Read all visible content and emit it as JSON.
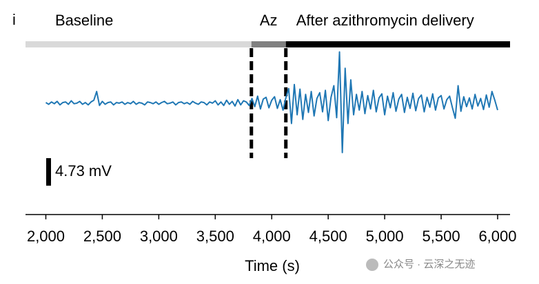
{
  "chart_data": {
    "type": "line",
    "panel_label": "i",
    "xlabel": "Time (s)",
    "watermark": "公众号 · 云深之无迹",
    "phases": [
      {
        "label": "Baseline",
        "start": 1820,
        "end": 3820,
        "color": "#d9d9d9"
      },
      {
        "label": "Az",
        "start": 3820,
        "end": 4125,
        "color": "#808080"
      },
      {
        "label": "After azithromycin delivery",
        "start": 4125,
        "end": 6110,
        "color": "#000000"
      }
    ],
    "markers": [
      3820,
      4125
    ],
    "scale_bar": {
      "value": 4.73,
      "label": "4.73 mV"
    },
    "xlim": [
      1820,
      6110
    ],
    "ylim": [
      -19.16,
      15.37
    ],
    "xticks": [
      {
        "value": 2000,
        "label": "2,000"
      },
      {
        "value": 2500,
        "label": "2,500"
      },
      {
        "value": 3000,
        "label": "3,000"
      },
      {
        "value": 3500,
        "label": "3,500"
      },
      {
        "value": 4000,
        "label": "4,000"
      },
      {
        "value": 4500,
        "label": "4,500"
      },
      {
        "value": 5000,
        "label": "5,000"
      },
      {
        "value": 5500,
        "label": "5,500"
      },
      {
        "value": 6000,
        "label": "6,000"
      }
    ],
    "x": [
      2000,
      2025,
      2050,
      2075,
      2100,
      2125,
      2150,
      2175,
      2200,
      2225,
      2250,
      2275,
      2300,
      2325,
      2350,
      2375,
      2400,
      2425,
      2450,
      2475,
      2500,
      2525,
      2550,
      2575,
      2600,
      2625,
      2650,
      2675,
      2700,
      2725,
      2750,
      2775,
      2800,
      2825,
      2850,
      2875,
      2900,
      2925,
      2950,
      2975,
      3000,
      3025,
      3050,
      3075,
      3100,
      3125,
      3150,
      3175,
      3200,
      3225,
      3250,
      3275,
      3300,
      3325,
      3350,
      3375,
      3400,
      3425,
      3450,
      3475,
      3500,
      3525,
      3550,
      3575,
      3600,
      3625,
      3650,
      3675,
      3700,
      3725,
      3750,
      3775,
      3800,
      3825,
      3850,
      3875,
      3900,
      3925,
      3950,
      3975,
      4000,
      4025,
      4050,
      4075,
      4100,
      4125,
      4150,
      4175,
      4200,
      4225,
      4250,
      4275,
      4300,
      4325,
      4350,
      4375,
      4400,
      4425,
      4450,
      4475,
      4500,
      4525,
      4550,
      4575,
      4600,
      4625,
      4650,
      4675,
      4700,
      4725,
      4750,
      4775,
      4800,
      4825,
      4850,
      4875,
      4900,
      4925,
      4950,
      4975,
      5000,
      5025,
      5050,
      5075,
      5100,
      5125,
      5150,
      5175,
      5200,
      5225,
      5250,
      5275,
      5300,
      5325,
      5350,
      5375,
      5400,
      5425,
      5450,
      5475,
      5500,
      5525,
      5550,
      5575,
      5600,
      5625,
      5650,
      5675,
      5700,
      5725,
      5750,
      5775,
      5800,
      5825,
      5850,
      5875,
      5900,
      5925,
      5950,
      5975,
      6000
    ],
    "series": [
      {
        "color": "#1f77b4",
        "values": [
          0.1,
          -0.2,
          0.2,
          -0.1,
          0.3,
          -0.3,
          0.1,
          0.2,
          -0.2,
          0.4,
          -0.1,
          0.0,
          0.3,
          -0.2,
          0.1,
          -0.3,
          0.2,
          0.5,
          2.0,
          -0.4,
          0.3,
          -0.2,
          0.1,
          0.2,
          -0.3,
          0.1,
          0.0,
          0.2,
          -0.2,
          0.1,
          -0.1,
          0.3,
          -0.2,
          0.1,
          0.0,
          -0.3,
          0.2,
          0.1,
          -0.1,
          0.2,
          -0.2,
          0.1,
          0.3,
          -0.1,
          0.0,
          0.2,
          -0.3,
          0.1,
          0.2,
          -0.1,
          0.1,
          -0.2,
          0.3,
          0.0,
          -0.2,
          0.2,
          0.1,
          -0.3,
          0.2,
          0.0,
          0.4,
          -0.3,
          0.2,
          -0.4,
          0.5,
          -0.2,
          0.3,
          -0.5,
          0.6,
          -0.3,
          0.4,
          0.2,
          -0.4,
          0.8,
          -0.6,
          1.2,
          -1.0,
          0.7,
          1.0,
          -0.8,
          0.5,
          1.1,
          -0.9,
          0.6,
          -1.2,
          0.9,
          2.5,
          -3.5,
          3.2,
          -2.0,
          2.4,
          -2.8,
          1.5,
          -1.6,
          2.0,
          -2.2,
          0.8,
          1.8,
          -1.5,
          2.2,
          -3.0,
          1.0,
          3.0,
          -2.5,
          8.8,
          -8.5,
          6.0,
          -3.5,
          4.0,
          -2.0,
          1.5,
          -1.2,
          2.0,
          -1.8,
          1.3,
          -1.0,
          2.2,
          -1.5,
          0.9,
          1.6,
          -2.0,
          1.2,
          -0.8,
          1.8,
          -1.4,
          0.7,
          1.5,
          -1.6,
          1.0,
          -0.9,
          1.7,
          -1.3,
          0.8,
          1.4,
          -1.5,
          1.0,
          -0.7,
          1.6,
          -1.2,
          0.9,
          1.3,
          -1.0,
          0.6,
          1.2,
          -0.8,
          -2.6,
          3.0,
          -1.4,
          1.1,
          -0.6,
          0.9,
          -1.0,
          1.5,
          -0.5,
          0.8,
          -1.1,
          1.4,
          -0.7,
          2.0,
          0.5,
          -1.2
        ]
      }
    ]
  }
}
